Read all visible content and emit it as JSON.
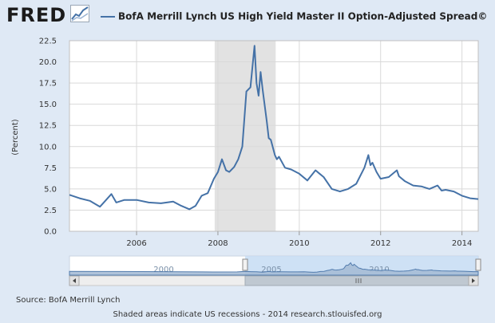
{
  "header": {
    "logo_text": "FRED",
    "title": "BofA Merrill Lynch US High Yield Master II Option-Adjusted Spread©"
  },
  "chart_data": {
    "type": "line",
    "ylabel": "(Percent)",
    "ylim": [
      0,
      22.5
    ],
    "yticks": [
      0.0,
      2.5,
      5.0,
      7.5,
      10.0,
      12.5,
      15.0,
      17.5,
      20.0,
      22.5
    ],
    "ytick_labels": [
      "0.0",
      "2.5",
      "5.0",
      "7.5",
      "10.0",
      "12.5",
      "15.0",
      "17.5",
      "20.0",
      "22.5"
    ],
    "xlim": [
      2004.35,
      2014.4
    ],
    "xticks": [
      2006,
      2008,
      2010,
      2012,
      2014
    ],
    "xtick_labels": [
      "2006",
      "2008",
      "2010",
      "2012",
      "2014"
    ],
    "recession": [
      2007.92,
      2009.42
    ],
    "grid": true,
    "series": [
      {
        "name": "",
        "color": "#4572a7",
        "x": [
          2004.35,
          2004.6,
          2004.85,
          2005.1,
          2005.25,
          2005.38,
          2005.5,
          2005.7,
          2006.0,
          2006.3,
          2006.6,
          2006.9,
          2007.1,
          2007.3,
          2007.45,
          2007.6,
          2007.75,
          2007.9,
          2008.0,
          2008.1,
          2008.2,
          2008.28,
          2008.4,
          2008.5,
          2008.6,
          2008.7,
          2008.8,
          2008.9,
          2008.95,
          2009.0,
          2009.05,
          2009.1,
          2009.2,
          2009.25,
          2009.3,
          2009.4,
          2009.45,
          2009.5,
          2009.65,
          2009.8,
          2010.0,
          2010.2,
          2010.4,
          2010.5,
          2010.6,
          2010.8,
          2011.0,
          2011.2,
          2011.4,
          2011.6,
          2011.7,
          2011.75,
          2011.8,
          2011.9,
          2012.0,
          2012.2,
          2012.4,
          2012.45,
          2012.6,
          2012.8,
          2013.0,
          2013.2,
          2013.4,
          2013.5,
          2013.6,
          2013.8,
          2014.0,
          2014.2,
          2014.4
        ],
        "y": [
          4.3,
          3.9,
          3.6,
          2.9,
          3.7,
          4.4,
          3.4,
          3.7,
          3.7,
          3.4,
          3.3,
          3.5,
          3.0,
          2.6,
          3.0,
          4.2,
          4.5,
          6.2,
          7.0,
          8.5,
          7.2,
          7.0,
          7.6,
          8.5,
          10.0,
          16.5,
          17.0,
          21.9,
          17.5,
          16.0,
          18.8,
          16.7,
          13.0,
          11.0,
          10.8,
          9.0,
          8.5,
          8.8,
          7.5,
          7.3,
          6.8,
          6.0,
          7.2,
          6.8,
          6.4,
          5.0,
          4.7,
          5.0,
          5.6,
          7.5,
          9.0,
          7.8,
          8.1,
          7.0,
          6.2,
          6.4,
          7.2,
          6.5,
          5.9,
          5.4,
          5.3,
          5.0,
          5.4,
          4.8,
          4.9,
          4.7,
          4.2,
          3.9,
          3.8
        ]
      }
    ],
    "navigator": {
      "labels": [
        "2000",
        "2005",
        "2010"
      ]
    }
  },
  "source_text": "Source: BofA Merrill Lynch",
  "footer_text": "Shaded areas indicate US recessions - 2014 research.stlouisfed.org"
}
